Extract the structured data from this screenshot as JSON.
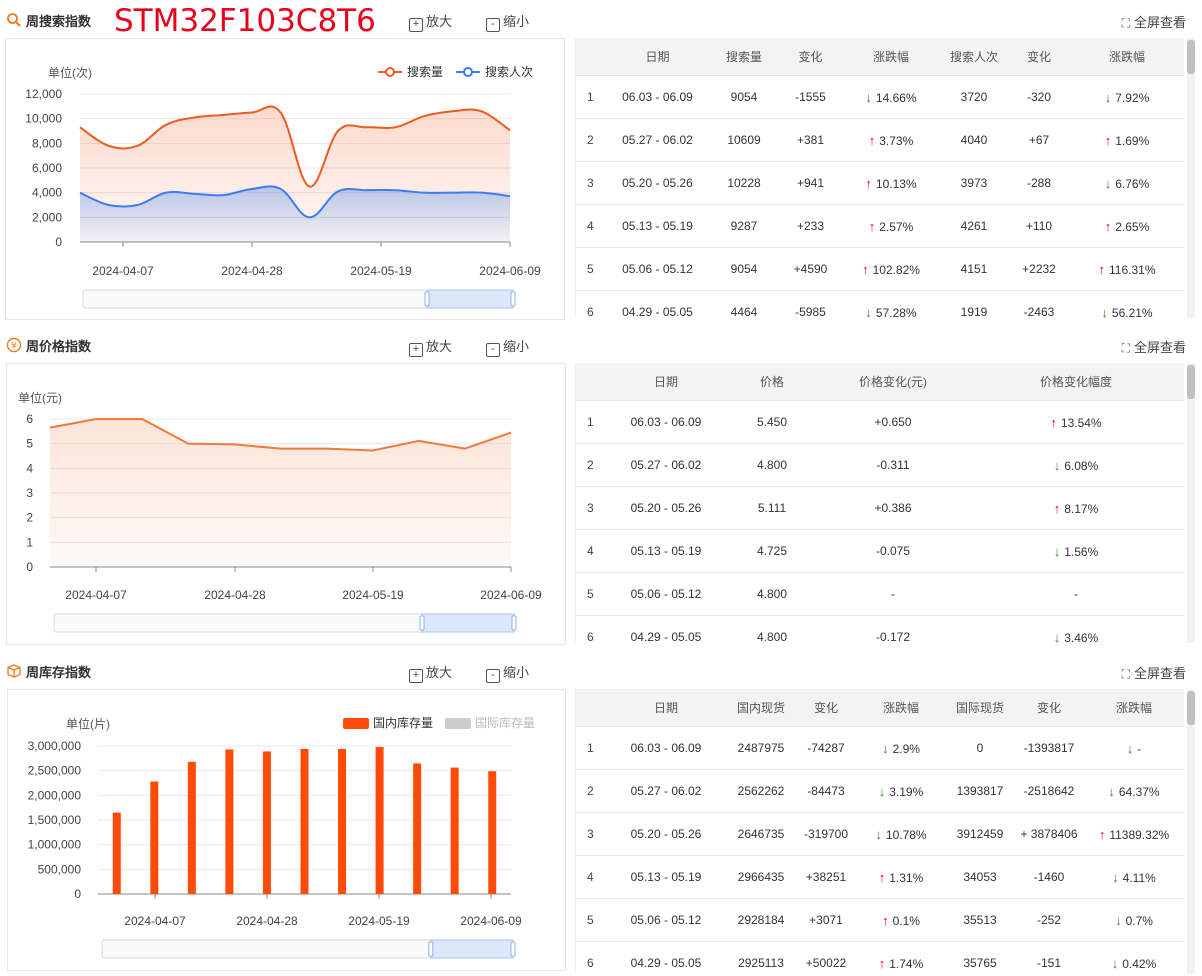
{
  "part_name": "STM32F103C8T6",
  "sections": {
    "search": {
      "title": "周搜索指数",
      "zoom_in": "放大",
      "zoom_out": "缩小",
      "fullscreen": "全屏查看",
      "icon": "search-icon",
      "table_headers": [
        "",
        "日期",
        "搜索量",
        "变化",
        "涨跌幅",
        "搜索人次",
        "变化",
        "涨跌幅"
      ],
      "rows": [
        {
          "idx": "1",
          "date": "06.03 - 06.09",
          "v1": "9054",
          "c1": "-1555",
          "d1": "down",
          "p1": "14.66%",
          "v2": "3720",
          "c2": "-320",
          "d2": "down",
          "p2": "7.92%"
        },
        {
          "idx": "2",
          "date": "05.27 - 06.02",
          "v1": "10609",
          "c1": "+381",
          "d1": "up",
          "p1": "3.73%",
          "v2": "4040",
          "c2": "+67",
          "d2": "up",
          "p2": "1.69%"
        },
        {
          "idx": "3",
          "date": "05.20 - 05.26",
          "v1": "10228",
          "c1": "+941",
          "d1": "up",
          "p1": "10.13%",
          "v2": "3973",
          "c2": "-288",
          "d2": "down",
          "p2": "6.76%"
        },
        {
          "idx": "4",
          "date": "05.13 - 05.19",
          "v1": "9287",
          "c1": "+233",
          "d1": "up",
          "p1": "2.57%",
          "v2": "4261",
          "c2": "+110",
          "d2": "up",
          "p2": "2.65%"
        },
        {
          "idx": "5",
          "date": "05.06 - 05.12",
          "v1": "9054",
          "c1": "+4590",
          "d1": "up",
          "p1": "102.82%",
          "v2": "4151",
          "c2": "+2232",
          "d2": "up",
          "p2": "116.31%"
        },
        {
          "idx": "6",
          "date": "04.29 - 05.05",
          "v1": "4464",
          "c1": "-5985",
          "d1": "down",
          "p1": "57.28%",
          "v2": "1919",
          "c2": "-2463",
          "d2": "down",
          "p2": "56.21%"
        }
      ]
    },
    "price": {
      "title": "周价格指数",
      "zoom_in": "放大",
      "zoom_out": "缩小",
      "fullscreen": "全屏查看",
      "icon": "yen-icon",
      "table_headers": [
        "",
        "日期",
        "价格",
        "价格变化(元)",
        "价格变化幅度"
      ],
      "rows": [
        {
          "idx": "1",
          "date": "06.03 - 06.09",
          "price": "5.450",
          "chg": "+0.650",
          "dir": "up",
          "pct": "13.54%"
        },
        {
          "idx": "2",
          "date": "05.27 - 06.02",
          "price": "4.800",
          "chg": "-0.311",
          "dir": "down",
          "pct": "6.08%"
        },
        {
          "idx": "3",
          "date": "05.20 - 05.26",
          "price": "5.111",
          "chg": "+0.386",
          "dir": "up",
          "pct": "8.17%"
        },
        {
          "idx": "4",
          "date": "05.13 - 05.19",
          "price": "4.725",
          "chg": "-0.075",
          "dir": "down",
          "pct": "1.56%"
        },
        {
          "idx": "5",
          "date": "05.06 - 05.12",
          "price": "4.800",
          "chg": "-",
          "dir": "none",
          "pct": "-"
        },
        {
          "idx": "6",
          "date": "04.29 - 05.05",
          "price": "4.800",
          "chg": "-0.172",
          "dir": "down",
          "pct": "3.46%"
        }
      ]
    },
    "stock": {
      "title": "周库存指数",
      "zoom_in": "放大",
      "zoom_out": "缩小",
      "fullscreen": "全屏查看",
      "icon": "box-icon",
      "table_headers": [
        "",
        "日期",
        "国内现货",
        "变化",
        "涨跌幅",
        "国际现货",
        "变化",
        "涨跌幅"
      ],
      "rows": [
        {
          "idx": "1",
          "date": "06.03 - 06.09",
          "v1": "2487975",
          "c1": "-74287",
          "d1": "down",
          "p1": "2.9%",
          "v2": "0",
          "c2": "-1393817",
          "d2": "down",
          "p2": "-"
        },
        {
          "idx": "2",
          "date": "05.27 - 06.02",
          "v1": "2562262",
          "c1": "-84473",
          "d1": "down",
          "p1": "3.19%",
          "v2": "1393817",
          "c2": "-2518642",
          "d2": "down",
          "p2": "64.37%"
        },
        {
          "idx": "3",
          "date": "05.20 - 05.26",
          "v1": "2646735",
          "c1": "-319700",
          "d1": "down",
          "p1": "10.78%",
          "v2": "3912459",
          "c2": "+ 3878406",
          "d2": "up",
          "p2": "11389.32%"
        },
        {
          "idx": "4",
          "date": "05.13 - 05.19",
          "v1": "2966435",
          "c1": "+38251",
          "d1": "up",
          "p1": "1.31%",
          "v2": "34053",
          "c2": "-1460",
          "d2": "down",
          "p2": "4.11%"
        },
        {
          "idx": "5",
          "date": "05.06 - 05.12",
          "v1": "2928184",
          "c1": "+3071",
          "d1": "up",
          "p1": "0.1%",
          "v2": "35513",
          "c2": "-252",
          "d2": "down",
          "p2": "0.7%"
        },
        {
          "idx": "6",
          "date": "04.29 - 05.05",
          "v1": "2925113",
          "c1": "+50022",
          "d1": "up",
          "p1": "1.74%",
          "v2": "35765",
          "c2": "-151",
          "d2": "down",
          "p2": "0.42%"
        }
      ]
    }
  },
  "chart_data": [
    {
      "type": "area",
      "ylabel": "单位(次)",
      "ylim": [
        0,
        12000
      ],
      "yticks": [
        "0",
        "2,000",
        "4,000",
        "6,000",
        "8,000",
        "10,000",
        "12,000"
      ],
      "xticks": [
        "2024-04-07",
        "2024-04-28",
        "2024-05-19",
        "2024-06-09"
      ],
      "legend_position": "top-right",
      "series": [
        {
          "name": "搜索量",
          "color": "#f05a1e",
          "values": [
            9300,
            7800,
            7800,
            9500,
            10100,
            10300,
            10500,
            10500,
            4500,
            9000,
            9300,
            9300,
            10200,
            10600,
            10600,
            9054
          ]
        },
        {
          "name": "搜索人次",
          "color": "#3b7ef0",
          "values": [
            4000,
            3000,
            3000,
            4000,
            3900,
            3800,
            4300,
            4300,
            2000,
            4100,
            4200,
            4200,
            4000,
            4000,
            4000,
            3720
          ]
        }
      ]
    },
    {
      "type": "area",
      "ylabel": "单位(元)",
      "ylim": [
        0,
        6
      ],
      "yticks": [
        "0",
        "1",
        "2",
        "3",
        "4",
        "5",
        "6"
      ],
      "xticks": [
        "2024-04-07",
        "2024-04-28",
        "2024-05-19",
        "2024-06-09"
      ],
      "series": [
        {
          "name": "价格",
          "color": "#f07a3c",
          "values": [
            5.65,
            6.0,
            6.0,
            5.0,
            4.97,
            4.8,
            4.8,
            4.725,
            5.111,
            4.8,
            5.45
          ]
        }
      ]
    },
    {
      "type": "bar",
      "ylabel": "单位(片)",
      "ylim": [
        0,
        3000000
      ],
      "yticks": [
        "0",
        "500,000",
        "1,000,000",
        "1,500,000",
        "2,000,000",
        "2,500,000",
        "3,000,000"
      ],
      "xticks": [
        "2024-04-07",
        "2024-04-28",
        "2024-05-19",
        "2024-06-09"
      ],
      "legend_position": "top-right",
      "series": [
        {
          "name": "国内库存量",
          "color": "#ff4b0a",
          "values": [
            1650000,
            2280000,
            2680000,
            2930000,
            2890000,
            2940000,
            2940000,
            2980000,
            2646735,
            2562262,
            2487975
          ]
        },
        {
          "name": "国际库存量",
          "color": "#cccccc",
          "values": []
        }
      ]
    }
  ]
}
